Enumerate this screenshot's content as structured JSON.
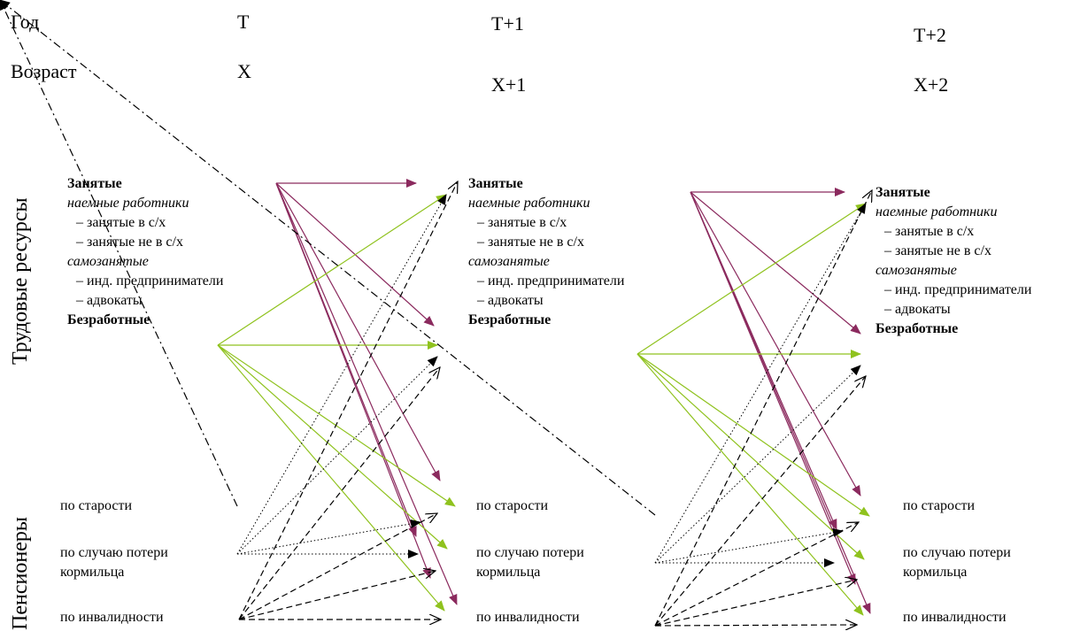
{
  "header": {
    "year_label": "Год",
    "age_label": "Возраст",
    "years": [
      "T",
      "T+1",
      "T+2"
    ],
    "ages": [
      "X",
      "X+1",
      "X+2"
    ]
  },
  "side_labels": {
    "labor": "Трудовые ресурсы",
    "pensioners": "Пенсионеры"
  },
  "labor_block": {
    "employed": "Занятые",
    "hired": "наемные работники",
    "agri": "– занятые в с/х",
    "non_agri": "– занятые не в с/х",
    "self_employed": "самозанятые",
    "entrepreneurs": "– инд. предприниматели",
    "lawyers": "– адвокаты",
    "unemployed": "Безработные"
  },
  "pension_block": {
    "old_age": "по старости",
    "survivor_1": "по случаю потери",
    "survivor_2": "кормильца",
    "disability": "по инвалидности"
  },
  "colors": {
    "employed_arrow": "#8b2a5e",
    "unemployed_arrow": "#8fc21e",
    "pension_arrow": "#000000"
  }
}
